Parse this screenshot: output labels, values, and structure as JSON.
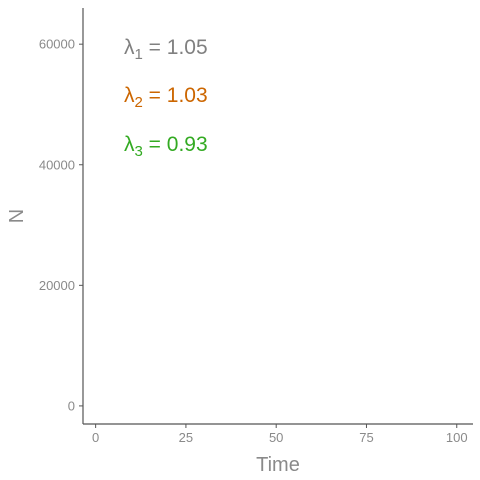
{
  "chart_data": {
    "type": "line",
    "title": "",
    "xlabel": "Time",
    "ylabel": "N",
    "xlim": [
      -3.5,
      104.5
    ],
    "ylim": [
      -3000,
      66000
    ],
    "x_ticks": [
      0,
      25,
      50,
      75,
      100
    ],
    "y_ticks": [
      0,
      20000,
      40000,
      60000
    ],
    "x_tick_labels": [
      "0",
      "25",
      "50",
      "75",
      "100"
    ],
    "y_tick_labels": [
      "0",
      "20000",
      "40000",
      "60000"
    ],
    "grid": false,
    "series": [],
    "annotations": [
      {
        "symbol": "λ",
        "subscript": "1",
        "text": " = 1.05",
        "color": "#808080"
      },
      {
        "symbol": "λ",
        "subscript": "2",
        "text": " = 1.03",
        "color": "#cc6600"
      },
      {
        "symbol": "λ",
        "subscript": "3",
        "text": " = 0.93",
        "color": "#33aa22"
      }
    ]
  }
}
